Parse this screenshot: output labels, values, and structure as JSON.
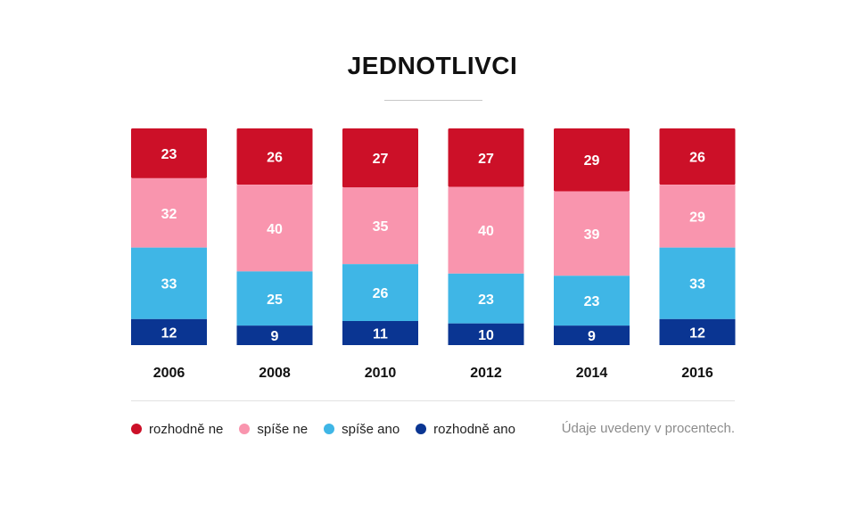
{
  "title": "JEDNOTLIVCI",
  "note": "Údaje uvedeny v procentech.",
  "legend": [
    {
      "label": "rozhodně ne",
      "color": "#cc1028"
    },
    {
      "label": "spíše ne",
      "color": "#f995ae"
    },
    {
      "label": "spíše ano",
      "color": "#3fb6e6"
    },
    {
      "label": "rozhodně ano",
      "color": "#0a3592"
    }
  ],
  "chart_data": {
    "type": "bar",
    "stacked": true,
    "categories": [
      "2006",
      "2008",
      "2010",
      "2012",
      "2014",
      "2016"
    ],
    "series": [
      {
        "name": "rozhodně ne",
        "color": "#cc1028",
        "values": [
          23,
          26,
          27,
          27,
          29,
          26
        ]
      },
      {
        "name": "spíše ne",
        "color": "#f995ae",
        "values": [
          32,
          40,
          35,
          40,
          39,
          29
        ]
      },
      {
        "name": "spíše ano",
        "color": "#3fb6e6",
        "values": [
          33,
          25,
          26,
          23,
          23,
          33
        ]
      },
      {
        "name": "rozhodně ano",
        "color": "#0a3592",
        "values": [
          12,
          9,
          11,
          10,
          9,
          12
        ]
      }
    ],
    "ylim": [
      0,
      100
    ],
    "grid": false,
    "legend_position": "bottom-left"
  }
}
